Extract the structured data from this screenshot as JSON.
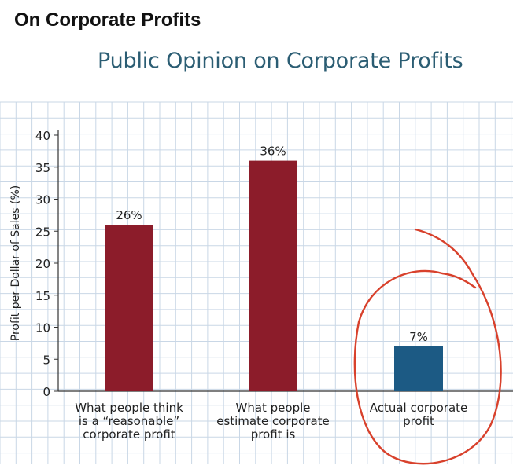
{
  "header": {
    "title": "On Corporate Profits"
  },
  "chart_data": {
    "type": "bar",
    "title": "Public Opinion on Corporate Profits",
    "ylabel": "Profit per Dollar of Sales (%)",
    "xlabel": "",
    "ylim": [
      0,
      40
    ],
    "yticks": [
      0,
      5,
      10,
      15,
      20,
      25,
      30,
      35,
      40
    ],
    "grid": true,
    "categories": [
      [
        "What people think",
        "is a “reasonable”",
        "corporate profit"
      ],
      [
        "What people",
        "estimate corporate",
        "profit is"
      ],
      [
        "Actual corporate",
        "profit"
      ]
    ],
    "values": [
      26,
      36,
      7
    ],
    "data_labels": [
      "26%",
      "36%",
      "7%"
    ],
    "colors": [
      "#8c1c2a",
      "#8c1c2a",
      "#1c5a84"
    ],
    "annotation": "hand-drawn red circle around the actual corporate profit bar"
  }
}
